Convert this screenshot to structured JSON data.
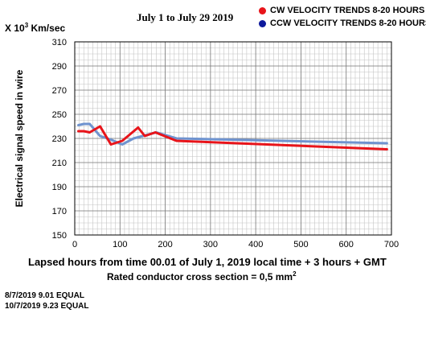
{
  "header": {
    "date_range": "July 1 to July 29   2019",
    "unit_prefix": "X 10",
    "unit_exp": "3",
    "unit_suffix": " Km/sec"
  },
  "legend": {
    "items": [
      {
        "label": "CW VELOCITY TRENDS 8-20 HOURS",
        "color": "#e8141a"
      },
      {
        "label": "CCW VELOCITY TRENDS 8-20 HOURS",
        "color": "#0e1a9c"
      }
    ]
  },
  "footer": {
    "x_label": "Lapsed hours from time 00.01 of     July  1, 2019   local time   + 3 hours + GMT",
    "cross_section_text": "Rated conductor cross section = 0,5 mm",
    "cross_section_exp": "2",
    "notes": [
      "8/7/2019  9.01  EQUAL",
      "10/7/2019  9.23  EQUAL"
    ]
  },
  "chart_data": {
    "type": "line",
    "title": "",
    "xlabel": "Lapsed hours from time 00.01 of     July  1, 2019   local time   + 3 hours + GMT",
    "ylabel": "Electrical signal speed in wire",
    "xlim": [
      0,
      700
    ],
    "ylim": [
      150,
      310
    ],
    "x_ticks": [
      0,
      100,
      200,
      300,
      400,
      500,
      600,
      700
    ],
    "y_ticks": [
      150,
      170,
      190,
      210,
      230,
      250,
      270,
      290,
      310
    ],
    "grid": true,
    "legend_position": "top-right",
    "series": [
      {
        "name": "CCW VELOCITY TRENDS 8-20 HOURS",
        "color": "#6f93cf",
        "x": [
          8,
          20,
          33,
          56,
          80,
          105,
          130,
          150,
          180,
          225,
          690
        ],
        "y": [
          241,
          242,
          242,
          232,
          229,
          225,
          230,
          232,
          235,
          230,
          226
        ]
      },
      {
        "name": "CW VELOCITY TRENDS 8-20 HOURS",
        "color": "#e8141a",
        "x": [
          8,
          20,
          33,
          56,
          80,
          105,
          140,
          155,
          178,
          225,
          690
        ],
        "y": [
          236,
          236,
          235,
          240,
          225,
          228,
          239,
          232,
          235,
          228,
          221
        ]
      }
    ]
  }
}
